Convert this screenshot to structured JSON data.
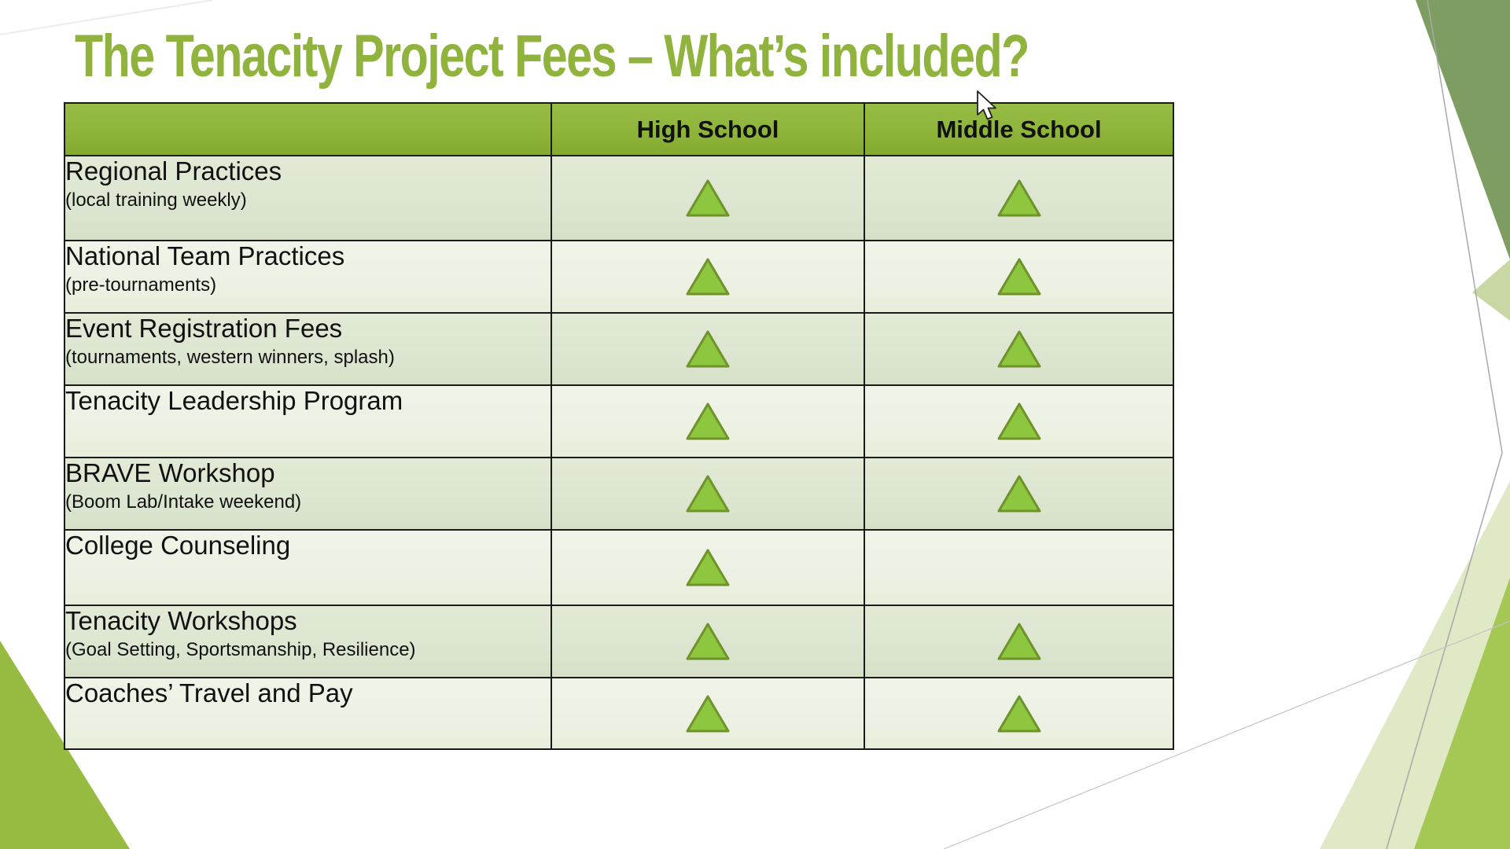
{
  "slide": {
    "title": "The Tenacity Project Fees – What’s included?"
  },
  "colors": {
    "title_green": "#8fb33c",
    "header_green": "#8eb43a",
    "row_green_dark": "#dce5d0",
    "row_green_light": "#edf1e3",
    "triangle_fill": "#8dc63f",
    "triangle_stroke": "#6f922b",
    "sage_decoration": "#7e9d62",
    "pale_wedge": "#dfe9c6",
    "bright_wedge": "#a5c854",
    "corner_wedge": "#97ba40"
  },
  "table": {
    "columns": [
      "",
      "High School",
      "Middle School"
    ],
    "included_marker": "triangle-icon",
    "rows": [
      {
        "label": "Regional Practices",
        "sublabel": "(local training weekly)",
        "high_school": true,
        "middle_school": true
      },
      {
        "label": "National Team Practices",
        "sublabel": "(pre-tournaments)",
        "high_school": true,
        "middle_school": true
      },
      {
        "label": "Event Registration Fees",
        "sublabel": "(tournaments, western winners, splash)",
        "high_school": true,
        "middle_school": true
      },
      {
        "label": "Tenacity Leadership Program",
        "sublabel": "",
        "high_school": true,
        "middle_school": true
      },
      {
        "label": "BRAVE Workshop",
        "sublabel": "(Boom Lab/Intake weekend)",
        "high_school": true,
        "middle_school": true
      },
      {
        "label": "College Counseling",
        "sublabel": "",
        "high_school": true,
        "middle_school": false
      },
      {
        "label": "Tenacity Workshops",
        "sublabel": "(Goal Setting, Sportsmanship, Resilience)",
        "high_school": true,
        "middle_school": true
      },
      {
        "label": "Coaches’ Travel and Pay",
        "sublabel": "",
        "high_school": true,
        "middle_school": true
      }
    ]
  }
}
